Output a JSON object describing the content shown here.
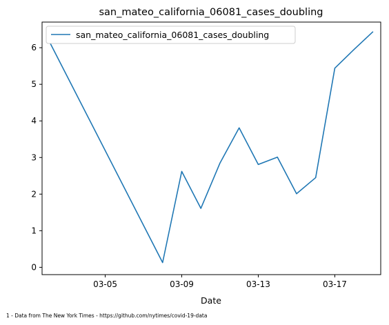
{
  "chart_data": {
    "type": "line",
    "title": "san_mateo_california_06081_cases_doubling",
    "xlabel": "Date",
    "ylabel": "",
    "x": [
      "03-02",
      "03-08",
      "03-09",
      "03-10",
      "03-11",
      "03-12",
      "03-13",
      "03-14",
      "03-15",
      "03-16",
      "03-17",
      "03-18",
      "03-19"
    ],
    "series": [
      {
        "name": "san_mateo_california_06081_cases_doubling",
        "color": "#1f77b4",
        "values": [
          6.25,
          0.13,
          2.62,
          1.61,
          2.85,
          3.81,
          2.81,
          3.01,
          2.01,
          2.45,
          5.44,
          5.95,
          6.44
        ]
      }
    ],
    "x_ticks": [
      "03-05",
      "03-09",
      "03-13",
      "03-17"
    ],
    "y_ticks": [
      0,
      1,
      2,
      3,
      4,
      5,
      6
    ],
    "xlim": [
      "03-01.7",
      "03-19.4"
    ],
    "ylim": [
      -0.2,
      6.7
    ],
    "grid": false,
    "legend_position": "top-left"
  },
  "footnote": "1 - Data from The New York Times - https://github.com/nytimes/covid-19-data"
}
